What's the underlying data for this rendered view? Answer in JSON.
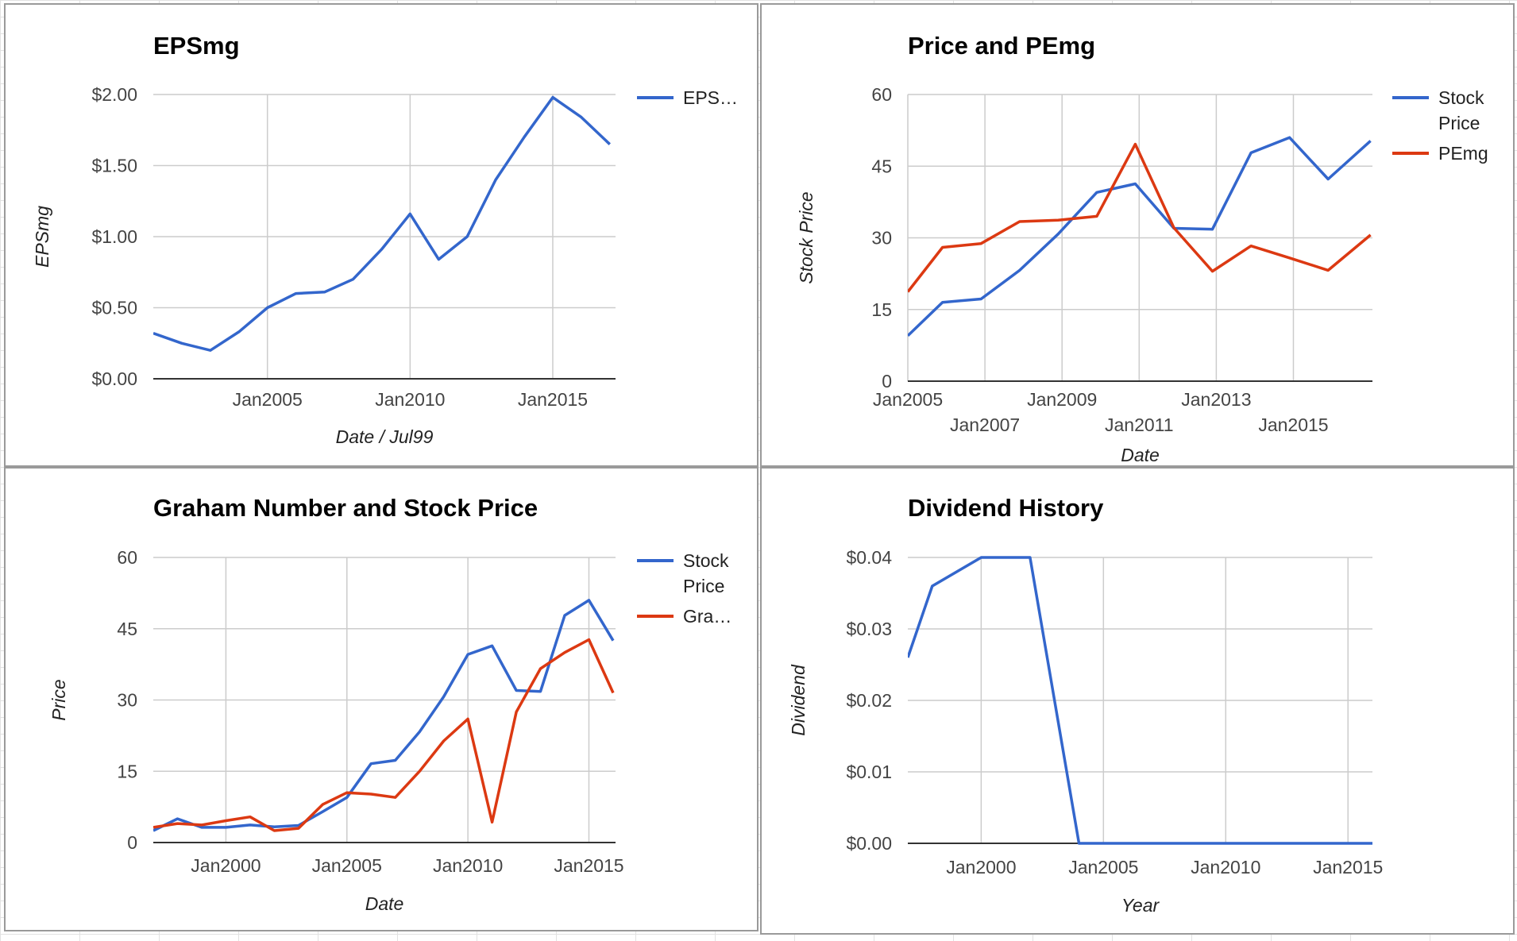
{
  "colors": {
    "blue": "#3366cc",
    "red": "#dc3912",
    "grid": "#cccccc",
    "baseline": "#333333"
  },
  "chart_data": [
    {
      "id": "eps",
      "type": "line",
      "title": "EPSmg",
      "xlabel": "Date / Jul99",
      "ylabel": "EPSmg",
      "xlim": [
        2001.0,
        2017.2
      ],
      "ylim": [
        0,
        2
      ],
      "yticks": [
        "$0.00",
        "$0.50",
        "$1.00",
        "$1.50",
        "$2.00"
      ],
      "xticks": [
        {
          "label": "Jan2005",
          "x": 2005
        },
        {
          "label": "Jan2010",
          "x": 2010
        },
        {
          "label": "Jan2015",
          "x": 2015
        }
      ],
      "grid": true,
      "legend_position": "right",
      "legend": [
        {
          "label": "EPS…",
          "color": "#3366cc"
        }
      ],
      "series": [
        {
          "name": "EPSmg",
          "color": "#3366cc",
          "x": [
            2001,
            2002,
            2003,
            2004,
            2005,
            2006,
            2007,
            2008,
            2009,
            2010,
            2011,
            2012,
            2013,
            2014,
            2015,
            2016,
            2017
          ],
          "y": [
            0.32,
            0.25,
            0.2,
            0.33,
            0.5,
            0.6,
            0.61,
            0.7,
            0.91,
            1.16,
            0.84,
            1.0,
            1.4,
            1.7,
            1.98,
            1.84,
            1.65
          ]
        }
      ]
    },
    {
      "id": "pe",
      "type": "line",
      "title": "Price and PEmg",
      "xlabel": "Date",
      "ylabel": "Stock Price",
      "xlim": [
        2005,
        2017.05
      ],
      "ylim": [
        0,
        60
      ],
      "yticks": [
        "0",
        "15",
        "30",
        "45",
        "60"
      ],
      "xticks": [
        {
          "label": "Jan2005",
          "x": 2005,
          "row": 1
        },
        {
          "label": "Jan2007",
          "x": 2007,
          "row": 2
        },
        {
          "label": "Jan2009",
          "x": 2009,
          "row": 1
        },
        {
          "label": "Jan2011",
          "x": 2011,
          "row": 2
        },
        {
          "label": "Jan2013",
          "x": 2013,
          "row": 1
        },
        {
          "label": "Jan2015",
          "x": 2015,
          "row": 2
        }
      ],
      "grid": true,
      "legend_position": "right",
      "legend": [
        {
          "label": "Stock Price",
          "color": "#3366cc"
        },
        {
          "label": "PEmg",
          "color": "#dc3912"
        }
      ],
      "series": [
        {
          "name": "Stock Price",
          "color": "#3366cc",
          "x": [
            2005,
            2005.9,
            2006.9,
            2007.9,
            2008.9,
            2009.9,
            2010.9,
            2011.9,
            2012.9,
            2013.9,
            2014.9,
            2015.9,
            2017.0
          ],
          "y": [
            9.5,
            16.5,
            17.2,
            23.2,
            30.8,
            39.5,
            41.3,
            32.0,
            31.8,
            47.8,
            51.0,
            42.3,
            50.3
          ]
        },
        {
          "name": "PEmg",
          "color": "#dc3912",
          "x": [
            2005,
            2005.9,
            2006.9,
            2007.9,
            2008.9,
            2009.9,
            2010.9,
            2011.9,
            2012.9,
            2013.9,
            2014.9,
            2015.9,
            2017.0
          ],
          "y": [
            18.7,
            28.0,
            28.8,
            33.4,
            33.7,
            34.5,
            49.6,
            32.1,
            23.0,
            28.3,
            25.8,
            23.2,
            30.6
          ]
        }
      ]
    },
    {
      "id": "graham",
      "type": "line",
      "title": "Graham Number and Stock Price",
      "xlabel": "Date",
      "ylabel": "Price",
      "xlim": [
        1997,
        2016.1
      ],
      "ylim": [
        0,
        60
      ],
      "yticks": [
        "0",
        "15",
        "30",
        "45",
        "60"
      ],
      "xticks": [
        {
          "label": "Jan2000",
          "x": 2000
        },
        {
          "label": "Jan2005",
          "x": 2005
        },
        {
          "label": "Jan2010",
          "x": 2010
        },
        {
          "label": "Jan2015",
          "x": 2015
        }
      ],
      "grid": true,
      "legend_position": "right",
      "legend": [
        {
          "label": "Stock Price",
          "color": "#3366cc"
        },
        {
          "label": "Gra…",
          "color": "#dc3912"
        }
      ],
      "series": [
        {
          "name": "Stock Price",
          "color": "#3366cc",
          "x": [
            1997,
            1998,
            1999,
            2000,
            2001,
            2002,
            2003,
            2004,
            2005,
            2006,
            2007,
            2008,
            2009,
            2010,
            2011,
            2012,
            2013,
            2014,
            2015,
            2016
          ],
          "y": [
            2.5,
            5.0,
            3.2,
            3.2,
            3.7,
            3.3,
            3.6,
            6.5,
            9.5,
            16.6,
            17.3,
            23.3,
            30.7,
            39.6,
            41.4,
            32.0,
            31.8,
            47.8,
            51.0,
            42.5
          ]
        },
        {
          "name": "Graham Number",
          "color": "#dc3912",
          "x": [
            1997,
            1998,
            1999,
            2000,
            2001,
            2002,
            2003,
            2004,
            2005,
            2006,
            2007,
            2008,
            2009,
            2010,
            2011,
            2012,
            2013,
            2014,
            2015,
            2016
          ],
          "y": [
            3.2,
            4.0,
            3.7,
            4.6,
            5.4,
            2.5,
            3.0,
            8.0,
            10.5,
            10.2,
            9.5,
            15.0,
            21.4,
            26.0,
            4.3,
            27.5,
            36.6,
            40.0,
            42.7,
            31.5
          ]
        }
      ]
    },
    {
      "id": "dividend",
      "type": "line",
      "title": "Dividend History",
      "xlabel": "Year",
      "ylabel": "Dividend",
      "xlim": [
        1997,
        2016
      ],
      "ylim": [
        0,
        0.04
      ],
      "yticks": [
        "$0.00",
        "$0.01",
        "$0.02",
        "$0.03",
        "$0.04"
      ],
      "xticks": [
        {
          "label": "Jan2000",
          "x": 2000
        },
        {
          "label": "Jan2005",
          "x": 2005
        },
        {
          "label": "Jan2010",
          "x": 2010
        },
        {
          "label": "Jan2015",
          "x": 2015
        }
      ],
      "grid": true,
      "legend": [],
      "series": [
        {
          "name": "Dividend",
          "color": "#3366cc",
          "x": [
            1997,
            1998,
            1999,
            2000,
            2001,
            2002,
            2003,
            2004,
            2005,
            2006,
            2007,
            2008,
            2009,
            2010,
            2011,
            2012,
            2013,
            2014,
            2015,
            2016
          ],
          "y": [
            0.026,
            0.036,
            0.038,
            0.04,
            0.04,
            0.04,
            0.02,
            0,
            0,
            0,
            0,
            0,
            0,
            0,
            0,
            0,
            0,
            0,
            0,
            0
          ]
        }
      ]
    }
  ]
}
